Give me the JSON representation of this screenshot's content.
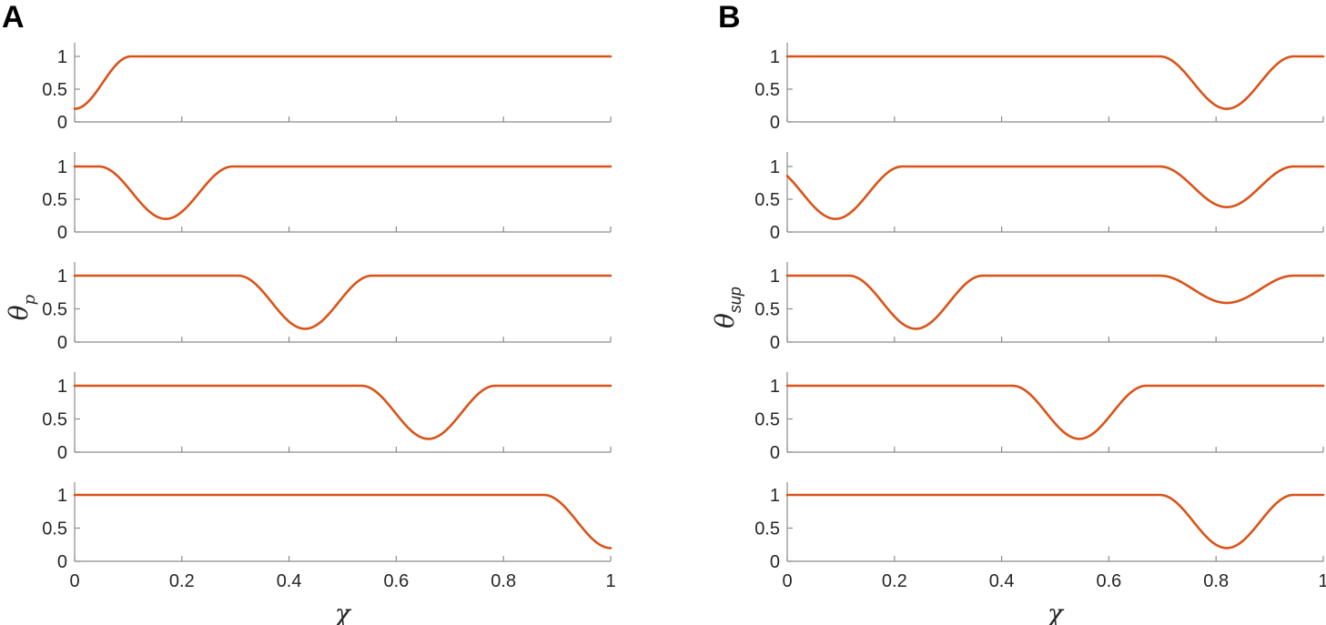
{
  "chart_data": [
    {
      "panel": "A",
      "type": "line",
      "xlabel": "χ",
      "ylabel": {
        "main": "θ",
        "sub": "p"
      },
      "xlim": [
        0,
        1
      ],
      "ylim": [
        0,
        1.1
      ],
      "yticks": [
        "0",
        "0.5",
        "1"
      ],
      "xticks": [
        "0",
        "0.2",
        "0.4",
        "0.6",
        "0.8",
        "1"
      ],
      "line_color": "#d95319",
      "grid": false,
      "subplots": [
        {
          "dips": [
            {
              "center": 0.0,
              "half_width": 0.105,
              "min": 0.2
            }
          ]
        },
        {
          "dips": [
            {
              "center": 0.17,
              "half_width": 0.125,
              "min": 0.2
            }
          ]
        },
        {
          "dips": [
            {
              "center": 0.43,
              "half_width": 0.125,
              "min": 0.2
            }
          ]
        },
        {
          "dips": [
            {
              "center": 0.66,
              "half_width": 0.125,
              "min": 0.2
            }
          ]
        },
        {
          "dips": [
            {
              "center": 1.0,
              "half_width": 0.125,
              "min": 0.2
            }
          ]
        }
      ]
    },
    {
      "panel": "B",
      "type": "line",
      "xlabel": "χ",
      "ylabel": {
        "main": "θ",
        "sub": "sup"
      },
      "xlim": [
        0,
        1
      ],
      "ylim": [
        0,
        1.1
      ],
      "yticks": [
        "0",
        "0.5",
        "1"
      ],
      "xticks": [
        "0",
        "0.2",
        "0.4",
        "0.6",
        "0.8",
        "1"
      ],
      "line_color": "#d95319",
      "grid": false,
      "subplots": [
        {
          "dips": [
            {
              "center": 0.82,
              "half_width": 0.125,
              "min": 0.2
            }
          ]
        },
        {
          "dips": [
            {
              "center": 0.09,
              "half_width": 0.125,
              "min": 0.2
            },
            {
              "center": 0.82,
              "half_width": 0.125,
              "min": 0.38
            }
          ]
        },
        {
          "dips": [
            {
              "center": 0.24,
              "half_width": 0.125,
              "min": 0.2
            },
            {
              "center": 0.82,
              "half_width": 0.125,
              "min": 0.59
            }
          ]
        },
        {
          "dips": [
            {
              "center": 0.545,
              "half_width": 0.125,
              "min": 0.2
            }
          ]
        },
        {
          "dips": [
            {
              "center": 0.82,
              "half_width": 0.125,
              "min": 0.2
            }
          ]
        }
      ]
    }
  ]
}
